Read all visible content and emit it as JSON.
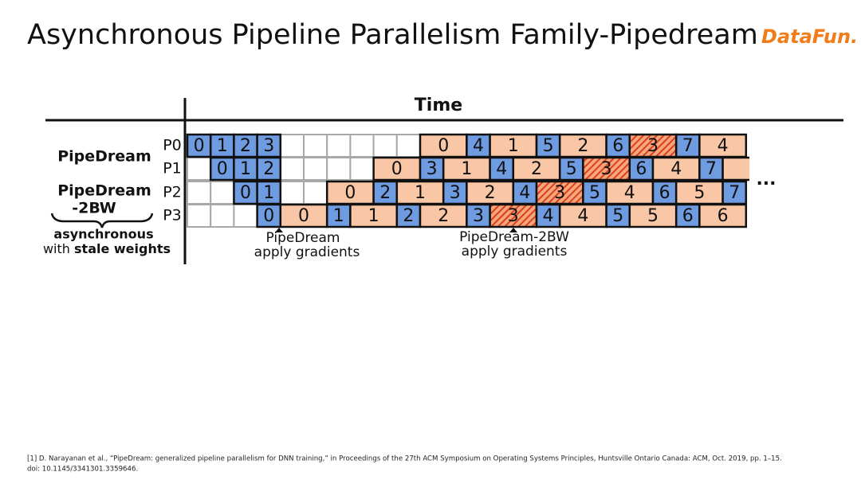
{
  "header": {
    "title": "Asynchronous Pipeline Parallelism Family-Pipedream",
    "logo": "DataFun."
  },
  "diagram": {
    "axis_label": "Time",
    "group_labels": [
      "PipeDream",
      "PipeDream",
      "-2BW"
    ],
    "note": {
      "line1": "asynchronous",
      "line2_plain": "with",
      "line2_bold": "stale weights"
    },
    "row_labels": [
      "P0",
      "P1",
      "P2",
      "P3"
    ],
    "colors": {
      "forward": "#6f9be0",
      "backward": "#f9c7a5",
      "hatched": "#e2562c"
    },
    "rows": [
      [
        {
          "pass": "forward",
          "label": "0"
        },
        {
          "pass": "forward",
          "label": "1"
        },
        {
          "pass": "forward",
          "label": "2"
        },
        {
          "pass": "forward",
          "label": "3"
        },
        {
          "pass": "idle"
        },
        {
          "pass": "idle"
        },
        {
          "pass": "idle"
        },
        {
          "pass": "idle"
        },
        {
          "pass": "idle"
        },
        {
          "pass": "idle"
        },
        {
          "pass": "backward",
          "label": "0"
        },
        {
          "pass": "forward",
          "label": "4"
        },
        {
          "pass": "backward",
          "label": "1"
        },
        {
          "pass": "forward",
          "label": "5"
        },
        {
          "pass": "backward",
          "label": "2"
        },
        {
          "pass": "forward",
          "label": "6"
        },
        {
          "pass": "hatched",
          "label": "3"
        },
        {
          "pass": "forward",
          "label": "7"
        },
        {
          "pass": "backward",
          "label": "4"
        }
      ],
      [
        {
          "pass": "forward",
          "label": "0"
        },
        {
          "pass": "forward",
          "label": "1"
        },
        {
          "pass": "forward",
          "label": "2"
        },
        {
          "pass": "idle"
        },
        {
          "pass": "idle"
        },
        {
          "pass": "idle"
        },
        {
          "pass": "idle"
        },
        {
          "pass": "backward",
          "label": "0"
        },
        {
          "pass": "forward",
          "label": "3"
        },
        {
          "pass": "backward",
          "label": "1"
        },
        {
          "pass": "forward",
          "label": "4"
        },
        {
          "pass": "backward",
          "label": "2"
        },
        {
          "pass": "forward",
          "label": "5"
        },
        {
          "pass": "hatched",
          "label": "3"
        },
        {
          "pass": "forward",
          "label": "6"
        },
        {
          "pass": "backward",
          "label": "4"
        },
        {
          "pass": "forward",
          "label": "7"
        },
        {
          "pass": "backward",
          "label": null
        }
      ],
      [
        {
          "pass": "forward",
          "label": "0"
        },
        {
          "pass": "forward",
          "label": "1"
        },
        {
          "pass": "idle"
        },
        {
          "pass": "idle"
        },
        {
          "pass": "backward",
          "label": "0"
        },
        {
          "pass": "forward",
          "label": "2"
        },
        {
          "pass": "backward",
          "label": "1"
        },
        {
          "pass": "forward",
          "label": "3"
        },
        {
          "pass": "backward",
          "label": "2"
        },
        {
          "pass": "forward",
          "label": "4"
        },
        {
          "pass": "hatched",
          "label": "3"
        },
        {
          "pass": "forward",
          "label": "5"
        },
        {
          "pass": "backward",
          "label": "4"
        },
        {
          "pass": "forward",
          "label": "6"
        },
        {
          "pass": "backward",
          "label": "5"
        },
        {
          "pass": "forward",
          "label": "7"
        }
      ],
      [
        {
          "pass": "forward",
          "label": "0"
        },
        {
          "pass": "backward",
          "label": "0"
        },
        {
          "pass": "forward",
          "label": "1"
        },
        {
          "pass": "backward",
          "label": "1"
        },
        {
          "pass": "forward",
          "label": "2"
        },
        {
          "pass": "backward",
          "label": "2"
        },
        {
          "pass": "forward",
          "label": "3"
        },
        {
          "pass": "hatched",
          "label": "3"
        },
        {
          "pass": "forward",
          "label": "4"
        },
        {
          "pass": "backward",
          "label": "4"
        },
        {
          "pass": "forward",
          "label": "5"
        },
        {
          "pass": "backward",
          "label": "5"
        },
        {
          "pass": "forward",
          "label": "6"
        },
        {
          "pass": "backward",
          "label": "6"
        }
      ]
    ],
    "ellipsis": "...",
    "annotations": [
      {
        "line1": "PipeDream",
        "line2": "apply gradients"
      },
      {
        "line1": "PipeDream-2BW",
        "line2": "apply gradients"
      }
    ]
  },
  "footer": {
    "citation": [
      "[1] D. Narayanan et al., “PipeDream: generalized pipeline parallelism for DNN training,” in Proceedings of the 27th ACM Symposium on Operating Systems Principles, Huntsville Ontario Canada: ACM, Oct. 2019, pp. 1–15.",
      "doi: 10.1145/3341301.3359646."
    ]
  }
}
